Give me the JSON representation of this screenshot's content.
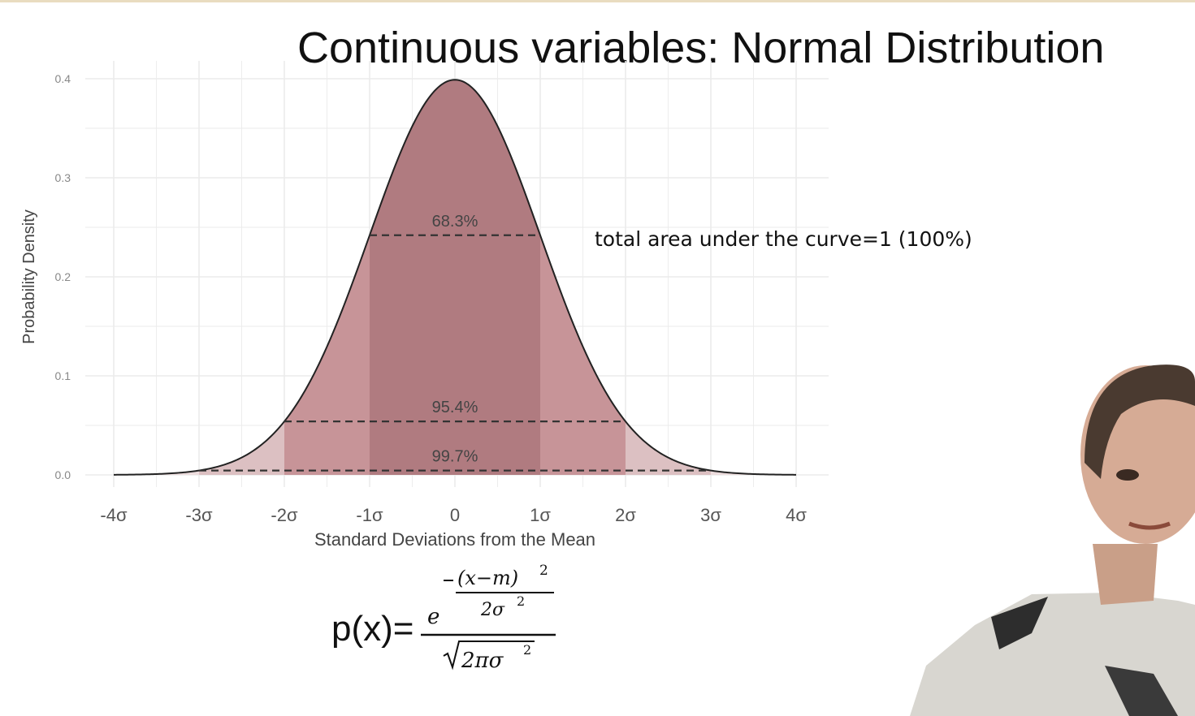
{
  "slide": {
    "title": "Continuous variables: Normal Distribution",
    "annotation": "total area under the curve=1 (100%)"
  },
  "formula": {
    "lhs": "p(x)=",
    "exp_base": "e",
    "exp_numerator": "(x−m)",
    "exp_num_power": "2",
    "exp_denominator": "2σ",
    "exp_den_power": "2",
    "denominator": "2πσ",
    "denominator_power": "2"
  },
  "chart_data": {
    "type": "area",
    "xlabel": "Standard Deviations from the Mean",
    "ylabel": "Probability Density",
    "xlim": [
      -4,
      4
    ],
    "ylim": [
      0,
      0.4
    ],
    "x_ticks": [
      -4,
      -3,
      -2,
      -1,
      0,
      1,
      2,
      3,
      4
    ],
    "x_tick_labels": [
      "-4σ",
      "-3σ",
      "-2σ",
      "-1σ",
      "0",
      "1σ",
      "2σ",
      "3σ",
      "4σ"
    ],
    "y_ticks": [
      0,
      0.1,
      0.2,
      0.3,
      0.4
    ],
    "y_tick_labels": [
      "0.0",
      "0.1",
      "0.2",
      "0.3",
      "0.4"
    ],
    "grid": true,
    "curve": "standard normal density",
    "shaded_regions": [
      {
        "from": -3,
        "to": 3,
        "color": "#dcc0c2"
      },
      {
        "from": -2,
        "to": 2,
        "color": "#c79498"
      },
      {
        "from": -1,
        "to": 1,
        "color": "#b07b80"
      }
    ],
    "intervals": [
      {
        "label": "68.3%",
        "from": -1,
        "to": 1,
        "y": 0.242
      },
      {
        "label": "95.4%",
        "from": -2,
        "to": 2,
        "y": 0.054
      },
      {
        "label": "99.7%",
        "from": -3,
        "to": 3,
        "y": 0.0044
      }
    ],
    "curve_color": "#222222",
    "grid_color": "#ebebeb"
  }
}
